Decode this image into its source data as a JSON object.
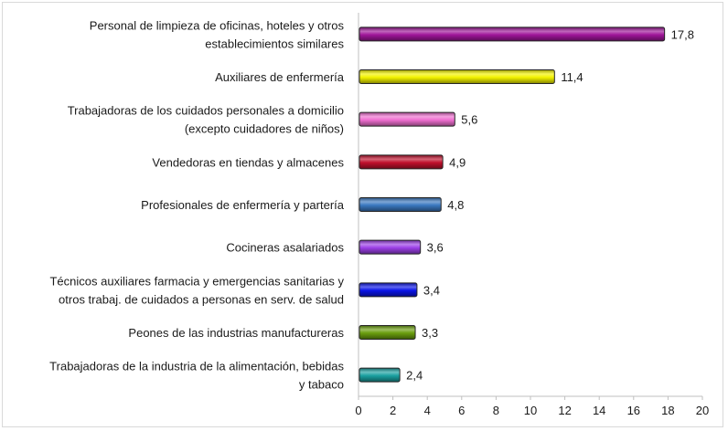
{
  "chart_data": {
    "type": "bar",
    "orientation": "horizontal",
    "title": "",
    "xlabel": "",
    "ylabel": "",
    "xlim": [
      0,
      20
    ],
    "xticks": [
      0,
      2,
      4,
      6,
      8,
      10,
      12,
      14,
      16,
      18,
      20
    ],
    "grid": false,
    "legend": "none",
    "categories": [
      [
        "Personal de limpieza de oficinas, hoteles y otros",
        "establecimientos similares"
      ],
      [
        "Auxiliares de enfermería"
      ],
      [
        "Trabajadoras de los cuidados personales a domicilio",
        "(excepto cuidadores de niños)"
      ],
      [
        "Vendedoras en tiendas y almacenes"
      ],
      [
        "Profesionales de enfermería y partería"
      ],
      [
        "Cocineras asalariados"
      ],
      [
        "Técnicos auxiliares farmacia y emergencias sanitarias y",
        "otros trabaj. de cuidados a personas en serv. de salud"
      ],
      [
        "Peones de las industrias manufactureras"
      ],
      [
        "Trabajadoras de la industria de la alimentación, bebidas",
        "y tabaco"
      ]
    ],
    "values": [
      17.8,
      11.4,
      5.6,
      4.9,
      4.8,
      3.6,
      3.4,
      3.3,
      2.4
    ],
    "value_labels": [
      "17,8",
      "11,4",
      "5,6",
      "4,9",
      "4,8",
      "3,6",
      "3,4",
      "3,3",
      "2,4"
    ],
    "colors": [
      "#a0169a",
      "#f2f200",
      "#ef6fd0",
      "#c0102c",
      "#3a78c0",
      "#9b3fe6",
      "#0a14e8",
      "#6a9e0e",
      "#1aa0a0"
    ]
  }
}
